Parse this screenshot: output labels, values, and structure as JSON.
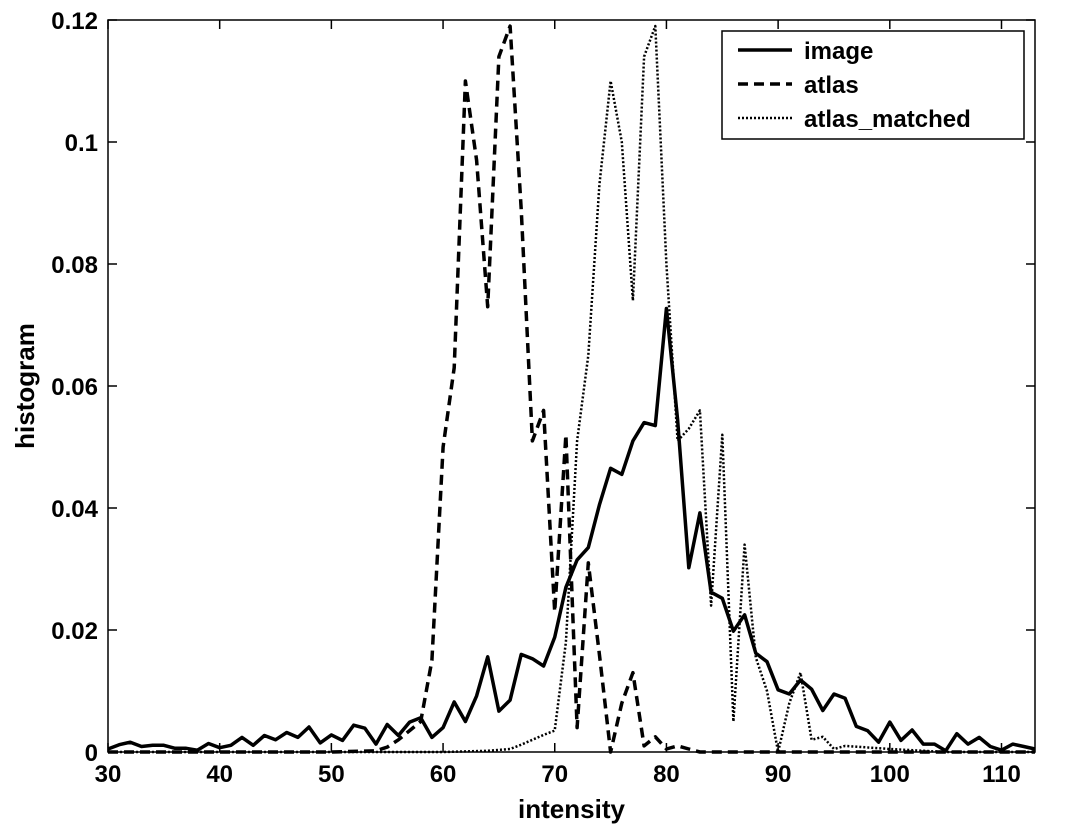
{
  "chart_data": {
    "type": "line",
    "title": "",
    "xlabel": "intensity",
    "ylabel": "histogram",
    "xlim": [
      30,
      113
    ],
    "ylim": [
      0,
      0.12
    ],
    "x_ticks": [
      30,
      40,
      50,
      60,
      70,
      80,
      90,
      100,
      110
    ],
    "x_tick_labels": [
      "30",
      "40",
      "50",
      "60",
      "70",
      "80",
      "90",
      "100",
      "110"
    ],
    "y_ticks": [
      0,
      0.02,
      0.04,
      0.06,
      0.08,
      0.1,
      0.12
    ],
    "y_tick_labels": [
      "0",
      "0.02",
      "0.04",
      "0.06",
      "0.08",
      "0.1",
      "0.12"
    ],
    "grid": false,
    "legend_position": "top-right",
    "series": [
      {
        "name": "image",
        "style": "solid",
        "color": "#000000",
        "x": [
          30,
          31,
          32,
          33,
          34,
          35,
          36,
          37,
          38,
          39,
          40,
          41,
          42,
          43,
          44,
          45,
          46,
          47,
          48,
          49,
          50,
          51,
          52,
          53,
          54,
          55,
          56,
          57,
          58,
          59,
          60,
          61,
          62,
          63,
          64,
          65,
          66,
          67,
          68,
          69,
          70,
          71,
          72,
          73,
          74,
          75,
          76,
          77,
          78,
          79,
          80,
          81,
          82,
          83,
          84,
          85,
          86,
          87,
          88,
          89,
          90,
          91,
          92,
          93,
          94,
          95,
          96,
          97,
          98,
          99,
          100,
          101,
          102,
          103,
          104,
          105,
          106,
          107,
          108,
          109,
          110,
          111,
          112,
          113
        ],
        "y": [
          0.0005,
          0.0012,
          0.0016,
          0.0009,
          0.0011,
          0.0011,
          0.0006,
          0.0006,
          0.0003,
          0.0014,
          0.0007,
          0.0011,
          0.0024,
          0.0011,
          0.0027,
          0.002,
          0.0032,
          0.0024,
          0.0041,
          0.0015,
          0.0028,
          0.0019,
          0.0044,
          0.0039,
          0.0013,
          0.0045,
          0.0027,
          0.0049,
          0.0056,
          0.0024,
          0.004,
          0.0082,
          0.005,
          0.0092,
          0.0156,
          0.0067,
          0.0085,
          0.016,
          0.0153,
          0.0141,
          0.0188,
          0.027,
          0.0315,
          0.0335,
          0.0405,
          0.0465,
          0.0455,
          0.051,
          0.054,
          0.0535,
          0.0727,
          0.0545,
          0.0302,
          0.0392,
          0.0262,
          0.0252,
          0.0198,
          0.0225,
          0.0162,
          0.0148,
          0.0102,
          0.0095,
          0.0118,
          0.0103,
          0.0068,
          0.0095,
          0.0088,
          0.0042,
          0.0035,
          0.0016,
          0.0049,
          0.0019,
          0.0036,
          0.0013,
          0.0013,
          0.0002,
          0.003,
          0.0013,
          0.0024,
          0.0009,
          0.0003,
          0.0013,
          0.0009,
          0.0005
        ]
      },
      {
        "name": "atlas",
        "style": "dashed",
        "color": "#000000",
        "x": [
          30,
          35,
          40,
          45,
          50,
          54,
          55,
          56,
          57,
          58,
          59,
          60,
          61,
          62,
          63,
          64,
          65,
          66,
          67,
          68,
          69,
          70,
          71,
          72,
          73,
          74,
          75,
          76,
          77,
          78,
          79,
          80,
          81,
          82,
          83,
          85,
          90,
          95,
          100,
          105,
          110,
          113
        ],
        "y": [
          0,
          0,
          0,
          0,
          0,
          0.0002,
          0.0008,
          0.002,
          0.0035,
          0.005,
          0.015,
          0.05,
          0.063,
          0.11,
          0.097,
          0.073,
          0.114,
          0.119,
          0.089,
          0.051,
          0.056,
          0.023,
          0.052,
          0.004,
          0.031,
          0.016,
          0,
          0.008,
          0.013,
          0.001,
          0.0025,
          0.0005,
          0.001,
          0.0005,
          0,
          0,
          0,
          0,
          0,
          0,
          0,
          0
        ]
      },
      {
        "name": "atlas_matched",
        "style": "dotted",
        "color": "#000000",
        "x": [
          30,
          40,
          50,
          60,
          62,
          64,
          66,
          67,
          68,
          69,
          70,
          71,
          72,
          73,
          74,
          75,
          76,
          77,
          78,
          79,
          80,
          81,
          82,
          83,
          84,
          85,
          86,
          87,
          88,
          89,
          90,
          91,
          92,
          93,
          94,
          95,
          96,
          100,
          105,
          110,
          113
        ],
        "y": [
          0,
          0,
          0,
          0,
          0.0001,
          0.0002,
          0.0005,
          0.0012,
          0.002,
          0.0028,
          0.0035,
          0.018,
          0.051,
          0.065,
          0.093,
          0.11,
          0.1,
          0.074,
          0.114,
          0.119,
          0.08,
          0.051,
          0.053,
          0.056,
          0.024,
          0.052,
          0.005,
          0.034,
          0.0155,
          0.01,
          0,
          0.008,
          0.013,
          0.002,
          0.0025,
          0.0005,
          0.001,
          0.0005,
          0,
          0,
          0
        ]
      }
    ]
  }
}
